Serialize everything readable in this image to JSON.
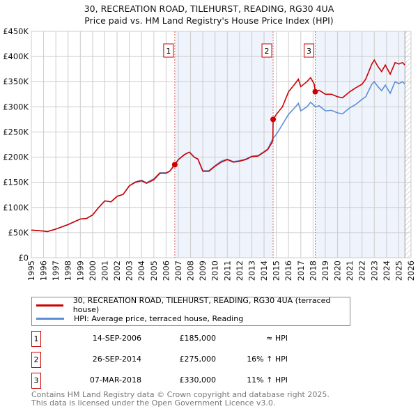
{
  "chart_data": {
    "type": "line",
    "title": "30, RECREATION ROAD, TILEHURST, READING, RG30 4UA",
    "subtitle": "Price paid vs. HM Land Registry's House Price Index (HPI)",
    "xlim": [
      1995,
      2026
    ],
    "ylim": [
      0,
      450000
    ],
    "y_ticks": [
      0,
      50000,
      100000,
      150000,
      200000,
      250000,
      300000,
      350000,
      400000,
      450000
    ],
    "y_tick_labels": [
      "£0",
      "£50K",
      "£100K",
      "£150K",
      "£200K",
      "£250K",
      "£300K",
      "£350K",
      "£400K",
      "£450K"
    ],
    "x_tick_labels": [
      "1995",
      "1996",
      "1997",
      "1998",
      "1999",
      "2000",
      "2001",
      "2002",
      "2003",
      "2004",
      "2005",
      "2006",
      "2007",
      "2008",
      "2009",
      "2010",
      "2011",
      "2012",
      "2013",
      "2014",
      "2015",
      "2016",
      "2017",
      "2018",
      "2019",
      "2020",
      "2021",
      "2022",
      "2023",
      "2024",
      "2025",
      "2026"
    ],
    "grid": true,
    "series": [
      {
        "name": "30, RECREATION ROAD, TILEHURST, READING, RG30 4UA (terraced house)",
        "color": "#cc0000",
        "x": [
          1995,
          1996,
          1996.3,
          1997,
          1998,
          1999,
          1999.5,
          2000,
          2000.5,
          2001,
          2001.5,
          2002,
          2002.5,
          2003,
          2003.5,
          2004,
          2004.4,
          2005,
          2005.5,
          2006,
          2006.3,
          2006.7,
          2007,
          2007.5,
          2007.9,
          2008.3,
          2008.6,
          2009,
          2009.5,
          2010,
          2010.5,
          2011,
          2011.5,
          2012,
          2012.5,
          2013,
          2013.5,
          2014,
          2014.3,
          2014.72,
          2014.74,
          2015,
          2015.5,
          2016,
          2016.5,
          2016.8,
          2017,
          2017.5,
          2017.8,
          2018.1,
          2018.18,
          2018.5,
          2019,
          2019.5,
          2020,
          2020.4,
          2021,
          2021.5,
          2022,
          2022.3,
          2022.8,
          2023,
          2023.3,
          2023.6,
          2023.9,
          2024.3,
          2024.7,
          2025,
          2025.3,
          2025.5
        ],
        "y": [
          55000,
          53000,
          52000,
          57000,
          66000,
          77000,
          78000,
          85000,
          100000,
          113000,
          111000,
          122000,
          126000,
          143000,
          150000,
          153000,
          148000,
          155000,
          168000,
          168000,
          172000,
          185000,
          195000,
          205000,
          210000,
          200000,
          196000,
          172000,
          172000,
          182000,
          190000,
          195000,
          190000,
          192000,
          195000,
          201000,
          202000,
          210000,
          215000,
          232000,
          275000,
          285000,
          300000,
          330000,
          345000,
          355000,
          340000,
          350000,
          358000,
          345000,
          330000,
          333000,
          325000,
          325000,
          320000,
          318000,
          330000,
          338000,
          345000,
          355000,
          385000,
          393000,
          380000,
          370000,
          383000,
          365000,
          388000,
          385000,
          388000,
          383000
        ]
      },
      {
        "name": "HPI: Average price, terraced house, Reading",
        "color": "#5b8fd4",
        "x": [
          1995,
          1996,
          1996.3,
          1997,
          1998,
          1999,
          1999.5,
          2000,
          2000.5,
          2001,
          2001.5,
          2002,
          2002.5,
          2003,
          2003.5,
          2004,
          2004.4,
          2005,
          2005.5,
          2006,
          2006.3,
          2006.7,
          2007,
          2007.5,
          2007.9,
          2008.3,
          2008.6,
          2009,
          2009.5,
          2010,
          2010.5,
          2011,
          2011.5,
          2012,
          2012.5,
          2013,
          2013.5,
          2014,
          2014.3,
          2014.72,
          2015,
          2015.5,
          2016,
          2016.5,
          2016.8,
          2017,
          2017.5,
          2017.8,
          2018.2,
          2018.5,
          2019,
          2019.5,
          2020,
          2020.4,
          2021,
          2021.5,
          2022,
          2022.3,
          2022.8,
          2023,
          2023.3,
          2023.6,
          2023.9,
          2024.3,
          2024.7,
          2025,
          2025.3,
          2025.5
        ],
        "y": [
          55000,
          53000,
          52000,
          57000,
          66000,
          77000,
          78000,
          85000,
          100000,
          113000,
          111000,
          122000,
          126000,
          143000,
          151000,
          154000,
          149000,
          157000,
          169000,
          169000,
          172000,
          184000,
          195000,
          205000,
          210000,
          200000,
          196000,
          173000,
          173000,
          183000,
          192000,
          196000,
          191000,
          193000,
          196000,
          202000,
          203000,
          211000,
          216000,
          237000,
          245000,
          265000,
          285000,
          298000,
          307000,
          292000,
          300000,
          309000,
          300000,
          302000,
          292000,
          293000,
          288000,
          286000,
          298000,
          305000,
          315000,
          320000,
          345000,
          350000,
          340000,
          332000,
          343000,
          327000,
          350000,
          346000,
          350000,
          345000
        ]
      }
    ],
    "sales": [
      {
        "label": "1",
        "x": 2006.71,
        "y": 185000,
        "date": "14-SEP-2006",
        "price": "£185,000",
        "hpi": "≈ HPI"
      },
      {
        "label": "2",
        "x": 2014.74,
        "y": 275000,
        "date": "26-SEP-2014",
        "price": "£275,000",
        "hpi": "16% ↑ HPI"
      },
      {
        "label": "3",
        "x": 2018.18,
        "y": 330000,
        "date": "07-MAR-2018",
        "price": "£330,000",
        "hpi": "11% ↑ HPI"
      }
    ],
    "shaded_ranges": [
      [
        2006.71,
        2014.74
      ],
      [
        2018.18,
        2025.5
      ]
    ],
    "forecast_from": 2025.5
  },
  "legend": {
    "red": "30, RECREATION ROAD, TILEHURST, READING, RG30 4UA (terraced house)",
    "blue": "HPI: Average price, terraced house, Reading"
  },
  "footer": {
    "line1": "Contains HM Land Registry data © Crown copyright and database right 2025.",
    "line2": "This data is licensed under the Open Government Licence v3.0."
  }
}
